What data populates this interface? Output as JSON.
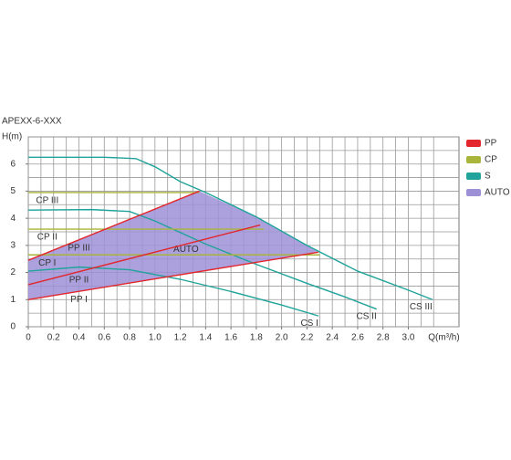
{
  "chart_data": {
    "type": "line",
    "title": "APEXX-6-XXX",
    "ylabel": "H(m)",
    "xlabel": "Q(m³/h)",
    "xlim": [
      0,
      3.4
    ],
    "ylim": [
      0,
      7
    ],
    "xticks": [
      0,
      0.2,
      0.4,
      0.6,
      0.8,
      {
        "value": 1,
        "label": "1.0"
      },
      1.2,
      1.4,
      1.6,
      1.8,
      {
        "value": 2,
        "label": "2.0"
      },
      2.2,
      2.4,
      2.6,
      2.8,
      {
        "value": 3,
        "label": "3.0"
      }
    ],
    "yticks": [
      0,
      1,
      2,
      3,
      4,
      5,
      6
    ],
    "xgrid": [
      0,
      0.1,
      0.2,
      0.3,
      0.4,
      0.5,
      0.6,
      0.7,
      0.8,
      0.9,
      1,
      1.1,
      1.2,
      1.3,
      1.4,
      1.5,
      1.6,
      1.7,
      1.8,
      1.9,
      2,
      2.1,
      2.2,
      2.3,
      2.4,
      2.5,
      2.6,
      2.7,
      2.8,
      2.9,
      3,
      3.1,
      3.2
    ],
    "ygrid": [
      0,
      0.5,
      1,
      1.5,
      2,
      2.5,
      3,
      3.5,
      4,
      4.5,
      5,
      5.5,
      6,
      6.5,
      7
    ],
    "grid": true,
    "legend": [
      {
        "name": "PP",
        "color": "#e2262c"
      },
      {
        "name": "CP",
        "color": "#a9b53a"
      },
      {
        "name": "S",
        "color": "#1fa39a"
      },
      {
        "name": "AUTO",
        "color": "#9d90d6"
      }
    ],
    "series": [
      {
        "name": "AUTO",
        "color": "#9d90d6",
        "fill": true,
        "x": [
          0,
          0,
          1.35,
          1.8,
          2.29
        ],
        "values": [
          1.0,
          2.45,
          5.0,
          4.05,
          2.75
        ]
      },
      {
        "name": "CS I",
        "color": "#1fa39a",
        "x": [
          0,
          0.4,
          0.8,
          1.2,
          1.6,
          2.0,
          2.29
        ],
        "values": [
          2.05,
          2.2,
          2.1,
          1.75,
          1.3,
          0.8,
          0.4
        ]
      },
      {
        "name": "CS II",
        "color": "#1fa39a",
        "x": [
          0,
          0.5,
          0.8,
          1.0,
          1.4,
          1.8,
          2.2,
          2.5,
          2.75
        ],
        "values": [
          4.3,
          4.32,
          4.25,
          3.9,
          3.05,
          2.3,
          1.6,
          1.1,
          0.65
        ]
      },
      {
        "name": "CS III",
        "color": "#1fa39a",
        "x": [
          0,
          0.6,
          0.85,
          1.0,
          1.2,
          1.4,
          1.8,
          2.2,
          2.6,
          3.0,
          3.19
        ],
        "values": [
          6.25,
          6.25,
          6.2,
          5.9,
          5.35,
          4.95,
          4.05,
          3.0,
          2.05,
          1.35,
          1.0
        ]
      },
      {
        "name": "CP I",
        "color": "#a9b53a",
        "x": [
          0,
          2.3
        ],
        "values": [
          2.65,
          2.65
        ]
      },
      {
        "name": "CP II",
        "color": "#a9b53a",
        "x": [
          0,
          1.86
        ],
        "values": [
          3.6,
          3.6
        ]
      },
      {
        "name": "CP III",
        "color": "#a9b53a",
        "x": [
          0,
          1.35
        ],
        "values": [
          4.95,
          4.95
        ]
      },
      {
        "name": "PP I",
        "color": "#e2262c",
        "x": [
          0,
          2.29
        ],
        "values": [
          1.0,
          2.75
        ]
      },
      {
        "name": "PP II",
        "color": "#e2262c",
        "x": [
          0,
          1.83
        ],
        "values": [
          1.55,
          3.75
        ]
      },
      {
        "name": "PP III",
        "color": "#e2262c",
        "x": [
          0,
          1.35
        ],
        "values": [
          2.45,
          5.0
        ]
      }
    ]
  }
}
